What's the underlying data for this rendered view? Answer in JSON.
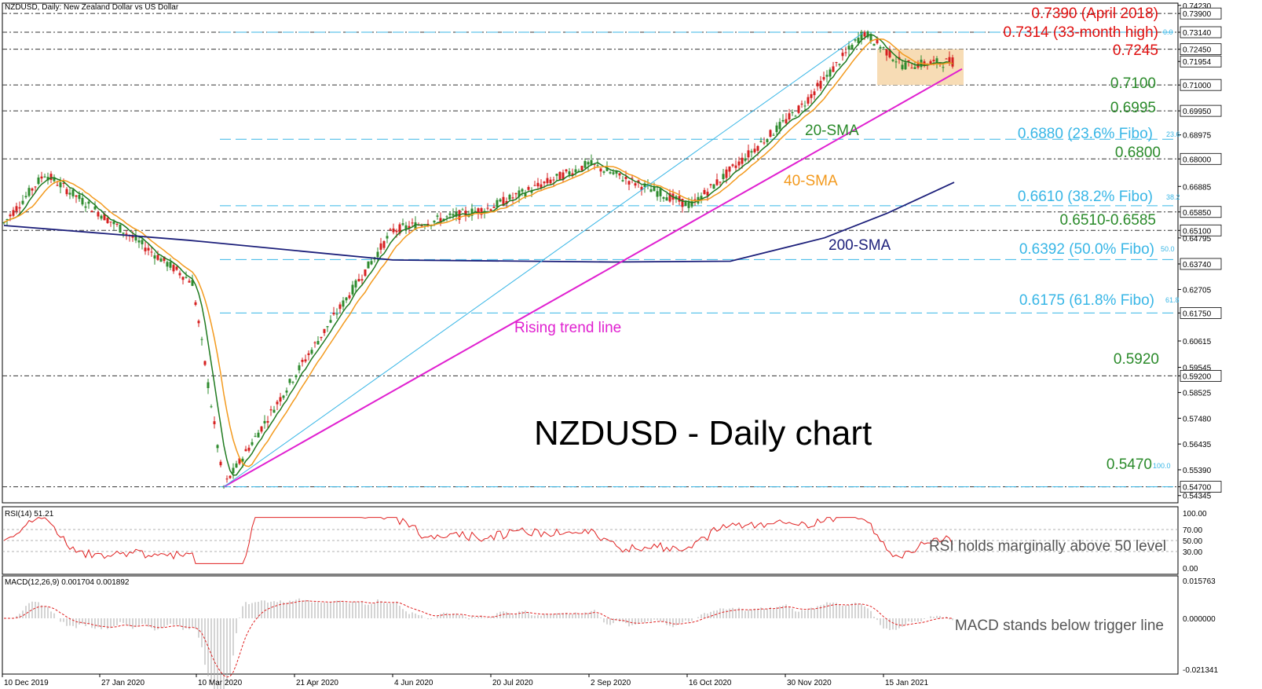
{
  "header": {
    "symbol_label": "NZDUSD, Daily:  New Zealand Dollar vs US Dollar",
    "rsi_label": "RSI(14) 51.21",
    "macd_label": "MACD(12,26,9) 0.001704 0.001892"
  },
  "colors": {
    "candle_up": "#2e8b2e",
    "candle_down": "#d62020",
    "sma20": "#1f7a1f",
    "sma40": "#f39a1e",
    "sma200": "#1c1f7a",
    "trend": "#e020d0",
    "fibo": "#38b6e6",
    "red_label": "#e01010",
    "green_label": "#2a8a2a",
    "rsi": "#e02020",
    "range_box": "#f7dcb5"
  },
  "main_axis": {
    "ymin": 0.5405,
    "ymax": 0.7432,
    "ticks": [
      {
        "label": "0.74230",
        "value": 0.7423
      },
      {
        "label": "0.73900",
        "value": 0.739,
        "boxed": true
      },
      {
        "label": "0.73140",
        "value": 0.7314,
        "boxed": true
      },
      {
        "label": "0.72450",
        "value": 0.7245,
        "boxed": true
      },
      {
        "label": "0.71954",
        "value": 0.71954,
        "boxed": true
      },
      {
        "label": "0.71000",
        "value": 0.71,
        "boxed": true
      },
      {
        "label": "0.69950",
        "value": 0.6995,
        "boxed": true
      },
      {
        "label": "0.68975",
        "value": 0.68975
      },
      {
        "label": "0.68000",
        "value": 0.68,
        "boxed": true
      },
      {
        "label": "0.66885",
        "value": 0.66885
      },
      {
        "label": "0.65850",
        "value": 0.6585,
        "boxed": true
      },
      {
        "label": "0.65100",
        "value": 0.651,
        "boxed": true
      },
      {
        "label": "0.64795",
        "value": 0.64795
      },
      {
        "label": "0.63740",
        "value": 0.6374,
        "boxed": true
      },
      {
        "label": "0.62705",
        "value": 0.62705
      },
      {
        "label": "0.61750",
        "value": 0.6175,
        "boxed": true
      },
      {
        "label": "0.60615",
        "value": 0.60615
      },
      {
        "label": "0.59545",
        "value": 0.59545
      },
      {
        "label": "0.59200",
        "value": 0.592,
        "boxed": true
      },
      {
        "label": "0.58525",
        "value": 0.58525
      },
      {
        "label": "0.57480",
        "value": 0.5748
      },
      {
        "label": "0.56435",
        "value": 0.56435
      },
      {
        "label": "0.55390",
        "value": 0.5539
      },
      {
        "label": "0.54700",
        "value": 0.547,
        "boxed": true
      },
      {
        "label": "0.54345",
        "value": 0.54345
      }
    ]
  },
  "x_axis": {
    "labels": [
      "10 Dec 2019",
      "27 Jan 2020",
      "10 Mar 2020",
      "21 Apr 2020",
      "4 Jun 2020",
      "20 Jul 2020",
      "2 Sep 2020",
      "16 Oct 2020",
      "30 Nov 2020",
      "15 Jan 2021"
    ]
  },
  "annotations": {
    "level_0739": "0.7390 (April 2018)",
    "level_07314": "0.7314 (33-month high)",
    "level_07245": "0.7245",
    "level_0710": "0.7100",
    "level_06995": "0.6995",
    "level_0688": "0.6880 (23.6% Fibo)",
    "level_068": "0.6800",
    "level_0661": "0.6610 (38.2% Fibo)",
    "level_0651": "0.6510-0.6585",
    "level_06392": "0.6392 (50.0% Fibo)",
    "level_06175": "0.6175 (61.8% Fibo)",
    "level_0592": "0.5920",
    "level_0547": "0.5470",
    "fibo_0": "0.0",
    "fibo_236": "23.6",
    "fibo_382": "38.2",
    "fibo_50": "50.0",
    "fibo_618": "61.8",
    "fibo_100": "100.0",
    "sma20_label": "20-SMA",
    "sma40_label": "40-SMA",
    "sma200_label": "200-SMA",
    "trend_label": "Rising trend line",
    "chart_title": "NZDUSD - Daily chart",
    "rsi_note": "RSI holds marginally above 50 level",
    "macd_note": "MACD stands below trigger line"
  },
  "rsi_axis": {
    "ticks": [
      {
        "label": "100.00",
        "value": 100
      },
      {
        "label": "70.00",
        "value": 70
      },
      {
        "label": "50.00",
        "value": 50
      },
      {
        "label": "30.00",
        "value": 30
      },
      {
        "label": "0.00",
        "value": 0
      }
    ]
  },
  "macd_axis": {
    "ticks": [
      {
        "label": "0.015763",
        "value": 0.015763
      },
      {
        "label": "0.000000",
        "value": 0
      },
      {
        "label": "-0.021341",
        "value": -0.021341
      }
    ]
  },
  "chart_data": {
    "type": "line",
    "title": "NZDUSD - Daily chart",
    "x_tick_labels": [
      "10 Dec 2019",
      "27 Jan 2020",
      "10 Mar 2020",
      "21 Apr 2020",
      "4 Jun 2020",
      "20 Jul 2020",
      "2 Sep 2020",
      "16 Oct 2020",
      "30 Nov 2020",
      "15 Jan 2021"
    ],
    "price_keypoints": [
      {
        "date": "10 Dec 2019",
        "close": 0.654
      },
      {
        "date": "31 Dec 2019",
        "close": 0.674
      },
      {
        "date": "27 Jan 2020",
        "close": 0.658
      },
      {
        "date": "10 Mar 2020",
        "close": 0.63
      },
      {
        "date": "18 Mar 2020",
        "close": 0.547
      },
      {
        "date": "21 Apr 2020",
        "close": 0.596
      },
      {
        "date": "4 Jun 2020",
        "close": 0.651
      },
      {
        "date": "20 Jul 2020",
        "close": 0.66
      },
      {
        "date": "2 Sep 2020",
        "close": 0.678
      },
      {
        "date": "16 Oct 2020",
        "close": 0.661
      },
      {
        "date": "30 Nov 2020",
        "close": 0.701
      },
      {
        "date": "31 Dec 2020",
        "close": 0.7314
      },
      {
        "date": "15 Jan 2021",
        "close": 0.718
      },
      {
        "date": "5 Feb 2021",
        "close": 0.7195
      }
    ],
    "horizontal_levels": [
      0.739,
      0.7314,
      0.7245,
      0.71,
      0.6995,
      0.68,
      0.6585,
      0.651,
      0.592,
      0.547
    ],
    "fibonacci": [
      {
        "ratio": "0.0",
        "price": 0.7314
      },
      {
        "ratio": "23.6",
        "price": 0.688
      },
      {
        "ratio": "38.2",
        "price": 0.661
      },
      {
        "ratio": "50.0",
        "price": 0.6392
      },
      {
        "ratio": "61.8",
        "price": 0.6175
      },
      {
        "ratio": "100.0",
        "price": 0.547
      }
    ],
    "series": [
      {
        "name": "20-SMA"
      },
      {
        "name": "40-SMA"
      },
      {
        "name": "200-SMA"
      },
      {
        "name": "Rising trend line"
      }
    ],
    "rsi": {
      "label": "RSI(14)",
      "last": 51.21,
      "ylim": [
        0,
        100
      ]
    },
    "macd": {
      "label": "MACD(12,26,9)",
      "macd": 0.001704,
      "signal": 0.001892,
      "ylim": [
        -0.021341,
        0.015763
      ]
    }
  }
}
